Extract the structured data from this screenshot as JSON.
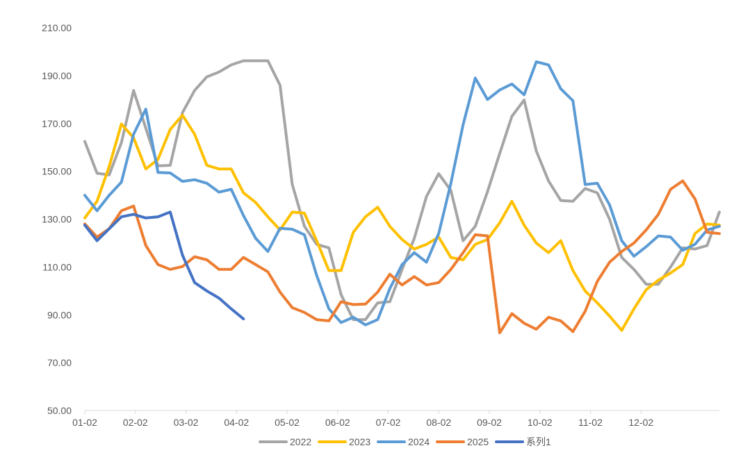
{
  "chart_data": {
    "type": "line",
    "ylim": [
      50,
      210
    ],
    "y_ticks": [
      "50.00",
      "70.00",
      "90.00",
      "110.00",
      "130.00",
      "150.00",
      "170.00",
      "190.00",
      "210.00"
    ],
    "x_ticks": [
      "01-02",
      "02-02",
      "03-02",
      "04-02",
      "05-02",
      "06-02",
      "07-02",
      "08-02",
      "09-02",
      "10-02",
      "11-02",
      "12-02"
    ],
    "points_per_year": 53,
    "grid": false,
    "legend_position": "bottom",
    "series": [
      {
        "name": "2022",
        "color": "#A5A5A5",
        "values": [
          162.5,
          149.2,
          148.5,
          162.0,
          183.8,
          168.0,
          152.3,
          152.5,
          174.5,
          183.8,
          189.5,
          191.5,
          194.5,
          196.2,
          196.2,
          196.2,
          186.0,
          144.5,
          127.0,
          119.5,
          118.0,
          98.5,
          88.0,
          88.0,
          95.0,
          95.5,
          109.0,
          122.0,
          139.5,
          149.0,
          142.0,
          121.0,
          127.0,
          141.5,
          157.5,
          173.0,
          179.8,
          158.5,
          146.0,
          137.8,
          137.5,
          142.8,
          141.0,
          130.0,
          114.0,
          109.0,
          102.8,
          102.8,
          110.0,
          118.0,
          117.5,
          119.0,
          133.0
        ]
      },
      {
        "name": "2023",
        "color": "#FFC000",
        "values": [
          130.5,
          137.5,
          152.0,
          169.8,
          164.0,
          151.0,
          155.0,
          167.5,
          173.5,
          165.5,
          152.5,
          151.0,
          151.0,
          141.0,
          137.0,
          131.0,
          125.5,
          133.0,
          132.5,
          121.0,
          108.5,
          108.5,
          124.5,
          131.0,
          135.0,
          127.0,
          121.5,
          117.5,
          119.5,
          122.5,
          114.0,
          113.0,
          119.5,
          121.5,
          128.5,
          137.5,
          127.5,
          120.0,
          116.0,
          121.0,
          108.5,
          100.0,
          95.0,
          89.5,
          83.5,
          92.5,
          100.5,
          104.5,
          107.5,
          111.0,
          124.0,
          128.0,
          127.5
        ]
      },
      {
        "name": "2024",
        "color": "#5B9BD5",
        "values": [
          140.0,
          133.5,
          140.0,
          145.5,
          165.5,
          176.0,
          149.5,
          149.3,
          145.8,
          146.5,
          145.0,
          141.3,
          142.5,
          131.5,
          122.0,
          116.5,
          126.2,
          125.8,
          123.5,
          106.5,
          92.5,
          86.8,
          89.0,
          85.8,
          88.0,
          101.0,
          111.0,
          116.0,
          112.0,
          124.0,
          145.0,
          169.5,
          189.0,
          180.0,
          184.0,
          186.5,
          182.0,
          195.8,
          194.5,
          184.5,
          179.5,
          144.5,
          145.0,
          136.0,
          121.0,
          114.5,
          118.5,
          123.0,
          122.5,
          117.0,
          119.5,
          125.5,
          127.0
        ]
      },
      {
        "name": "2025",
        "color": "#ED7D31",
        "values": [
          128.0,
          122.5,
          126.0,
          133.5,
          135.5,
          119.0,
          111.0,
          109.0,
          110.2,
          114.3,
          113.0,
          109.0,
          109.0,
          114.0,
          111.0,
          108.0,
          99.5,
          93.0,
          91.0,
          88.0,
          87.5,
          95.5,
          94.3,
          94.5,
          99.5,
          107.0,
          102.5,
          106.0,
          102.5,
          103.5,
          109.0,
          116.0,
          123.5,
          123.0,
          82.5,
          90.5,
          86.5,
          84.0,
          89.0,
          87.5,
          83.0,
          91.5,
          104.0,
          112.0,
          116.5,
          120.0,
          125.5,
          132.0,
          142.5,
          146.0,
          138.5,
          124.5,
          124.0
        ]
      },
      {
        "name": "系列1",
        "color": "#4472C4",
        "values": [
          127.5,
          121.0,
          126.0,
          131.0,
          132.0,
          130.5,
          131.0,
          133.0,
          115.0,
          103.5,
          100.0,
          97.0,
          92.5,
          88.3
        ]
      }
    ]
  }
}
